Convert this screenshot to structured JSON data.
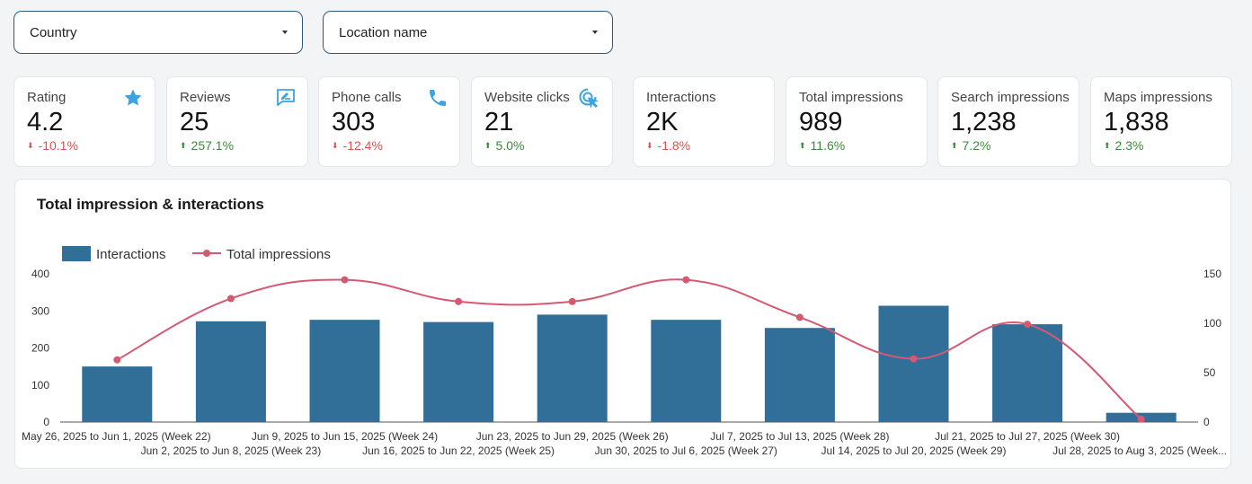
{
  "filters": {
    "country": "Country",
    "location": "Location name"
  },
  "kpis": [
    {
      "label": "Rating",
      "value": "4.2",
      "delta": "-10.1%",
      "direction": "down",
      "icon": "star-icon"
    },
    {
      "label": "Reviews",
      "value": "25",
      "delta": "257.1%",
      "direction": "up",
      "icon": "review-icon"
    },
    {
      "label": "Phone calls",
      "value": "303",
      "delta": "-12.4%",
      "direction": "down",
      "icon": "phone-icon"
    },
    {
      "label": "Website clicks",
      "value": "21",
      "delta": "5.0%",
      "direction": "up",
      "icon": "click-icon"
    },
    {
      "label": "Interactions",
      "value": "2K",
      "delta": "-1.8%",
      "direction": "down",
      "icon": ""
    },
    {
      "label": "Total impressions",
      "value": "989",
      "delta": "11.6%",
      "direction": "up",
      "icon": ""
    },
    {
      "label": "Search impressions",
      "value": "1,238",
      "delta": "7.2%",
      "direction": "up",
      "icon": ""
    },
    {
      "label": "Maps impressions",
      "value": "1,838",
      "delta": "2.3%",
      "direction": "up",
      "icon": ""
    }
  ],
  "colors": {
    "bar": "#316f98",
    "line": "#d45a73",
    "down": "#d9534f",
    "up": "#3a8a3a",
    "icon": "#3ba3e0"
  },
  "chart_data": {
    "type": "bar",
    "title": "Total impression & interactions",
    "categories": [
      "May 26, 2025 to Jun 1, 2025 (Week 22)",
      "Jun 2, 2025 to Jun 8, 2025 (Week 23)",
      "Jun 9, 2025 to Jun 15, 2025 (Week 24)",
      "Jun 16, 2025 to Jun 22, 2025 (Week 25)",
      "Jun 23, 2025 to Jun 29, 2025 (Week 26)",
      "Jun 30, 2025 to Jul 6, 2025 (Week 27)",
      "Jul 7, 2025 to Jul 13, 2025 (Week 28)",
      "Jul 14, 2025 to Jul 20, 2025 (Week 29)",
      "Jul 21, 2025 to Jul 27, 2025 (Week 30)",
      "Jul 28, 2025 to Aug 3, 2025 (Week..."
    ],
    "series": [
      {
        "name": "Interactions",
        "type": "bar",
        "axis": "left",
        "values": [
          150,
          272,
          276,
          270,
          290,
          276,
          254,
          314,
          264,
          25
        ]
      },
      {
        "name": "Total impressions",
        "type": "line",
        "axis": "right",
        "values": [
          63,
          125,
          144,
          122,
          122,
          144,
          106,
          64,
          99,
          3
        ]
      }
    ],
    "ylim_left": [
      0,
      400
    ],
    "yticks_left": [
      0,
      100,
      200,
      300,
      400
    ],
    "ylim_right": [
      0,
      150
    ],
    "yticks_right": [
      0,
      50,
      100,
      150
    ],
    "legend": "top-left",
    "grid": false
  }
}
